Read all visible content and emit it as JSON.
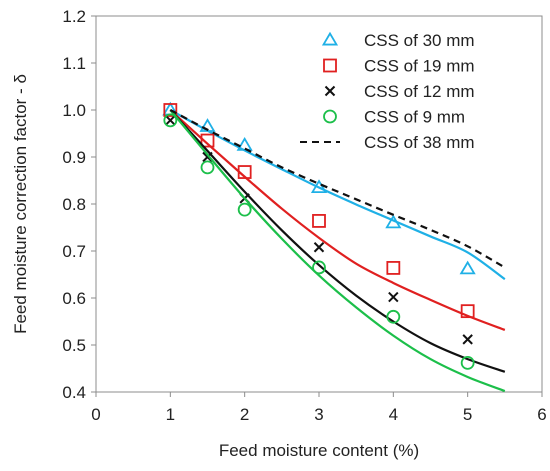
{
  "chart_data": {
    "type": "scatter",
    "xlabel": "Feed moisture content (%)",
    "ylabel": "Feed moisture correction factor - δ",
    "xlim": [
      0,
      6
    ],
    "ylim": [
      0.4,
      1.2
    ],
    "xticks": [
      0,
      1,
      2,
      3,
      4,
      5,
      6
    ],
    "yticks": [
      0.4,
      0.5,
      0.6,
      0.7,
      0.8,
      0.9,
      1.0,
      1.1,
      1.2
    ],
    "xtick_labels": [
      "0",
      "1",
      "2",
      "3",
      "4",
      "5",
      "6"
    ],
    "ytick_labels": [
      "0.4",
      "0.5",
      "0.6",
      "0.7",
      "0.8",
      "0.9",
      "1.0",
      "1.1",
      "1.2"
    ],
    "grid": false,
    "legend_position": "top-right",
    "series": [
      {
        "name": "CSS of 30 mm",
        "marker": "triangle",
        "color": "#1fb0e6",
        "points": [
          [
            1,
            1.0
          ],
          [
            1.5,
            0.965
          ],
          [
            2,
            0.925
          ],
          [
            3,
            0.835
          ],
          [
            4,
            0.76
          ],
          [
            5,
            0.662
          ]
        ],
        "fit": [
          [
            1,
            1.0
          ],
          [
            1.5,
            0.956
          ],
          [
            2,
            0.914
          ],
          [
            2.5,
            0.874
          ],
          [
            3,
            0.835
          ],
          [
            3.5,
            0.799
          ],
          [
            4,
            0.765
          ],
          [
            4.5,
            0.731
          ],
          [
            5,
            0.697
          ],
          [
            5.5,
            0.64
          ]
        ]
      },
      {
        "name": "CSS of 19 mm",
        "marker": "square",
        "color": "#e02020",
        "points": [
          [
            1,
            1.0
          ],
          [
            1.5,
            0.935
          ],
          [
            2,
            0.868
          ],
          [
            3,
            0.764
          ],
          [
            4,
            0.664
          ],
          [
            5,
            0.572
          ]
        ],
        "fit": [
          [
            1,
            1.0
          ],
          [
            1.5,
            0.928
          ],
          [
            2,
            0.858
          ],
          [
            2.5,
            0.79
          ],
          [
            3,
            0.728
          ],
          [
            3.5,
            0.673
          ],
          [
            4,
            0.632
          ],
          [
            4.5,
            0.596
          ],
          [
            5,
            0.562
          ],
          [
            5.5,
            0.532
          ]
        ]
      },
      {
        "name": "CSS of 12 mm",
        "marker": "x",
        "color": "#111111",
        "points": [
          [
            1,
            0.978
          ],
          [
            1.5,
            0.9
          ],
          [
            2,
            0.812
          ],
          [
            3,
            0.708
          ],
          [
            4,
            0.602
          ],
          [
            5,
            0.512
          ]
        ],
        "fit": [
          [
            1,
            1.0
          ],
          [
            1.5,
            0.913
          ],
          [
            2,
            0.826
          ],
          [
            2.5,
            0.744
          ],
          [
            3,
            0.67
          ],
          [
            3.5,
            0.605
          ],
          [
            4,
            0.55
          ],
          [
            4.5,
            0.504
          ],
          [
            5,
            0.47
          ],
          [
            5.5,
            0.443
          ]
        ]
      },
      {
        "name": "CSS of 9 mm",
        "marker": "circle",
        "color": "#1cbf4a",
        "points": [
          [
            1,
            0.978
          ],
          [
            1.5,
            0.878
          ],
          [
            2,
            0.788
          ],
          [
            3,
            0.665
          ],
          [
            4,
            0.56
          ],
          [
            5,
            0.462
          ]
        ],
        "fit": [
          [
            1,
            1.0
          ],
          [
            1.5,
            0.905
          ],
          [
            2,
            0.812
          ],
          [
            2.5,
            0.726
          ],
          [
            3,
            0.648
          ],
          [
            3.5,
            0.58
          ],
          [
            4,
            0.52
          ],
          [
            4.5,
            0.47
          ],
          [
            5,
            0.432
          ],
          [
            5.5,
            0.402
          ]
        ]
      },
      {
        "name": "CSS of 38 mm",
        "marker": "none",
        "line_style": "dashed",
        "color": "#111111",
        "fit": [
          [
            1,
            1.0
          ],
          [
            1.5,
            0.958
          ],
          [
            2,
            0.918
          ],
          [
            2.5,
            0.878
          ],
          [
            3,
            0.843
          ],
          [
            3.5,
            0.81
          ],
          [
            4,
            0.777
          ],
          [
            4.5,
            0.745
          ],
          [
            5,
            0.71
          ],
          [
            5.5,
            0.665
          ]
        ]
      }
    ]
  }
}
